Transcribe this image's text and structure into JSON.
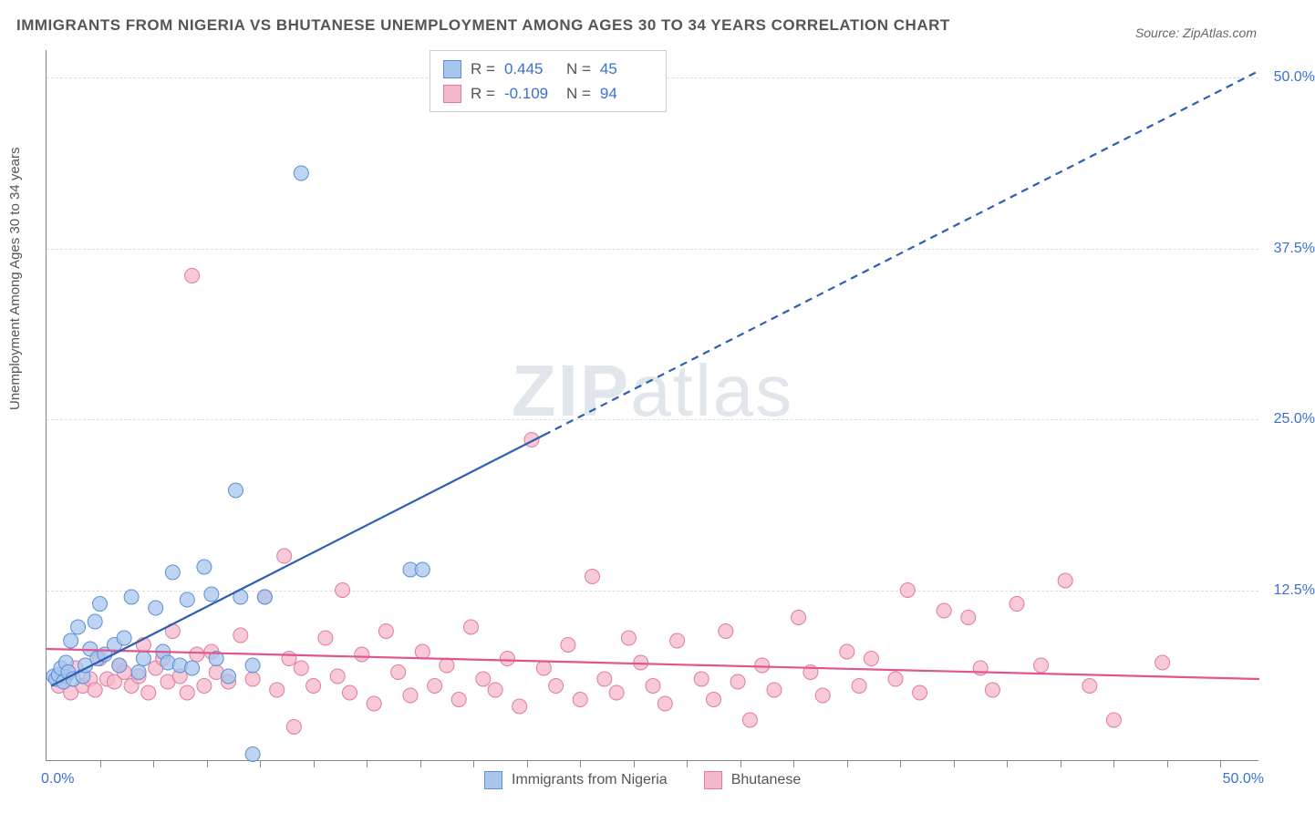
{
  "title": "IMMIGRANTS FROM NIGERIA VS BHUTANESE UNEMPLOYMENT AMONG AGES 30 TO 34 YEARS CORRELATION CHART",
  "source": "Source: ZipAtlas.com",
  "ylabel": "Unemployment Among Ages 30 to 34 years",
  "watermark_bold": "ZIP",
  "watermark_rest": "atlas",
  "chart": {
    "type": "scatter",
    "xlim": [
      0,
      50
    ],
    "ylim": [
      0,
      52
    ],
    "x_ticks": [
      0,
      50
    ],
    "x_tick_labels": [
      "0.0%",
      "50.0%"
    ],
    "minor_x_ticks": [
      2.2,
      4.4,
      6.6,
      8.8,
      11,
      13.2,
      15.4,
      17.6,
      19.8,
      22,
      24.2,
      26.4,
      28.6,
      30.8,
      33,
      35.2,
      37.4,
      39.6,
      41.8,
      44,
      46.2,
      48.4
    ],
    "y_ticks": [
      12.5,
      25.0,
      37.5,
      50.0
    ],
    "y_tick_labels": [
      "12.5%",
      "25.0%",
      "37.5%",
      "50.0%"
    ],
    "grid_color": "#dddddd",
    "background_color": "#ffffff",
    "series": [
      {
        "name": "Immigrants from Nigeria",
        "color_fill": "#a8c5ec",
        "color_stroke": "#5b8fd6",
        "marker_radius": 8,
        "marker_opacity": 0.75,
        "R": "0.445",
        "N": "45",
        "trend": {
          "x1": 0.2,
          "y1": 5.5,
          "x2": 50,
          "y2": 50.5,
          "dash_from_x": 20.5,
          "color": "#2c5fb3",
          "width": 2.2
        },
        "points": [
          [
            0.3,
            6.2
          ],
          [
            0.4,
            6.0
          ],
          [
            0.5,
            6.3
          ],
          [
            0.6,
            6.8
          ],
          [
            0.7,
            5.8
          ],
          [
            0.8,
            7.2
          ],
          [
            0.9,
            6.5
          ],
          [
            1.0,
            8.8
          ],
          [
            1.1,
            6.0
          ],
          [
            1.3,
            9.8
          ],
          [
            1.5,
            6.2
          ],
          [
            1.6,
            7.0
          ],
          [
            1.8,
            8.2
          ],
          [
            2.0,
            10.2
          ],
          [
            2.1,
            7.5
          ],
          [
            2.2,
            11.5
          ],
          [
            2.4,
            7.8
          ],
          [
            2.8,
            8.5
          ],
          [
            3.0,
            7.0
          ],
          [
            3.2,
            9.0
          ],
          [
            3.5,
            12.0
          ],
          [
            3.8,
            6.5
          ],
          [
            4.0,
            7.5
          ],
          [
            4.5,
            11.2
          ],
          [
            4.8,
            8.0
          ],
          [
            5.0,
            7.2
          ],
          [
            5.2,
            13.8
          ],
          [
            5.5,
            7.0
          ],
          [
            5.8,
            11.8
          ],
          [
            6.0,
            6.8
          ],
          [
            6.5,
            14.2
          ],
          [
            6.8,
            12.2
          ],
          [
            7.0,
            7.5
          ],
          [
            7.5,
            6.2
          ],
          [
            7.8,
            19.8
          ],
          [
            8.0,
            12.0
          ],
          [
            8.5,
            7.0
          ],
          [
            8.5,
            0.5
          ],
          [
            9.0,
            12.0
          ],
          [
            10.5,
            43.0
          ],
          [
            15.0,
            14.0
          ],
          [
            15.5,
            14.0
          ]
        ]
      },
      {
        "name": "Bhutanese",
        "color_fill": "#f5b8cb",
        "color_stroke": "#e07ba0",
        "marker_radius": 8,
        "marker_opacity": 0.75,
        "R": "-0.109",
        "N": "94",
        "trend": {
          "x1": 0,
          "y1": 8.2,
          "x2": 50,
          "y2": 6.0,
          "color": "#e05590",
          "width": 2.2
        },
        "points": [
          [
            0.5,
            5.5
          ],
          [
            0.8,
            6.2
          ],
          [
            1.0,
            5.0
          ],
          [
            1.2,
            6.8
          ],
          [
            1.5,
            5.5
          ],
          [
            1.8,
            6.0
          ],
          [
            2.0,
            5.2
          ],
          [
            2.2,
            7.5
          ],
          [
            2.5,
            6.0
          ],
          [
            2.8,
            5.8
          ],
          [
            3.0,
            7.0
          ],
          [
            3.2,
            6.5
          ],
          [
            3.5,
            5.5
          ],
          [
            3.8,
            6.2
          ],
          [
            4.0,
            8.5
          ],
          [
            4.2,
            5.0
          ],
          [
            4.5,
            6.8
          ],
          [
            4.8,
            7.5
          ],
          [
            5.0,
            5.8
          ],
          [
            5.2,
            9.5
          ],
          [
            5.5,
            6.2
          ],
          [
            5.8,
            5.0
          ],
          [
            6.0,
            35.5
          ],
          [
            6.2,
            7.8
          ],
          [
            6.5,
            5.5
          ],
          [
            6.8,
            8.0
          ],
          [
            7.0,
            6.5
          ],
          [
            7.5,
            5.8
          ],
          [
            8.0,
            9.2
          ],
          [
            8.5,
            6.0
          ],
          [
            9.0,
            12.0
          ],
          [
            9.5,
            5.2
          ],
          [
            9.8,
            15.0
          ],
          [
            10.0,
            7.5
          ],
          [
            10.2,
            2.5
          ],
          [
            10.5,
            6.8
          ],
          [
            11.0,
            5.5
          ],
          [
            11.5,
            9.0
          ],
          [
            12.0,
            6.2
          ],
          [
            12.2,
            12.5
          ],
          [
            12.5,
            5.0
          ],
          [
            13.0,
            7.8
          ],
          [
            13.5,
            4.2
          ],
          [
            14.0,
            9.5
          ],
          [
            14.5,
            6.5
          ],
          [
            15.0,
            4.8
          ],
          [
            15.5,
            8.0
          ],
          [
            16.0,
            5.5
          ],
          [
            16.5,
            7.0
          ],
          [
            17.0,
            4.5
          ],
          [
            17.5,
            9.8
          ],
          [
            18.0,
            6.0
          ],
          [
            18.5,
            5.2
          ],
          [
            19.0,
            7.5
          ],
          [
            19.5,
            4.0
          ],
          [
            20.0,
            23.5
          ],
          [
            20.5,
            6.8
          ],
          [
            21.0,
            5.5
          ],
          [
            21.5,
            8.5
          ],
          [
            22.0,
            4.5
          ],
          [
            22.5,
            13.5
          ],
          [
            23.0,
            6.0
          ],
          [
            23.5,
            5.0
          ],
          [
            24.0,
            9.0
          ],
          [
            24.5,
            7.2
          ],
          [
            25.0,
            5.5
          ],
          [
            25.5,
            4.2
          ],
          [
            26.0,
            8.8
          ],
          [
            27.0,
            6.0
          ],
          [
            27.5,
            4.5
          ],
          [
            28.0,
            9.5
          ],
          [
            28.5,
            5.8
          ],
          [
            29.0,
            3.0
          ],
          [
            29.5,
            7.0
          ],
          [
            30.0,
            5.2
          ],
          [
            31.0,
            10.5
          ],
          [
            31.5,
            6.5
          ],
          [
            32.0,
            4.8
          ],
          [
            33.0,
            8.0
          ],
          [
            33.5,
            5.5
          ],
          [
            34.0,
            7.5
          ],
          [
            35.0,
            6.0
          ],
          [
            35.5,
            12.5
          ],
          [
            36.0,
            5.0
          ],
          [
            37.0,
            11.0
          ],
          [
            38.0,
            10.5
          ],
          [
            38.5,
            6.8
          ],
          [
            39.0,
            5.2
          ],
          [
            40.0,
            11.5
          ],
          [
            41.0,
            7.0
          ],
          [
            42.0,
            13.2
          ],
          [
            43.0,
            5.5
          ],
          [
            44.0,
            3.0
          ],
          [
            46.0,
            7.2
          ]
        ]
      }
    ]
  },
  "legend": {
    "series1_label": "Immigrants from Nigeria",
    "series2_label": "Bhutanese"
  },
  "stats_labels": {
    "r": "R =",
    "n": "N ="
  }
}
